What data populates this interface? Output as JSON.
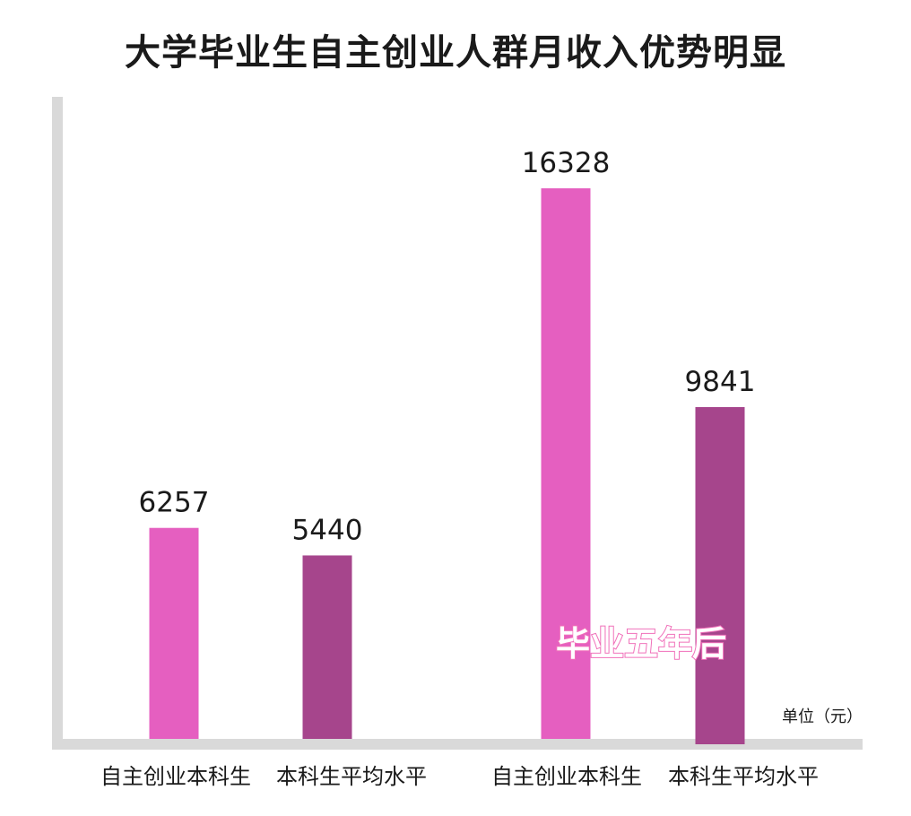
{
  "chart_data": {
    "type": "bar",
    "title": "大学毕业生自主创业人群月收入优势明显",
    "categories": [
      "自主创业本科生",
      "本科生平均水平",
      "自主创业本科生",
      "本科生平均水平"
    ],
    "values": [
      6257,
      5440,
      16328,
      9841
    ],
    "value_labels": [
      "6257",
      "5440",
      "16328",
      "9841"
    ],
    "unit": "单位（元）",
    "annotation": "毕业五年后",
    "colors": [
      "#e55fc0",
      "#a6458c",
      "#e55fc0",
      "#a6458c"
    ],
    "axis_color": "#d9d9d9",
    "ylim": [
      0,
      16328
    ],
    "grid": false,
    "legend": "none"
  }
}
